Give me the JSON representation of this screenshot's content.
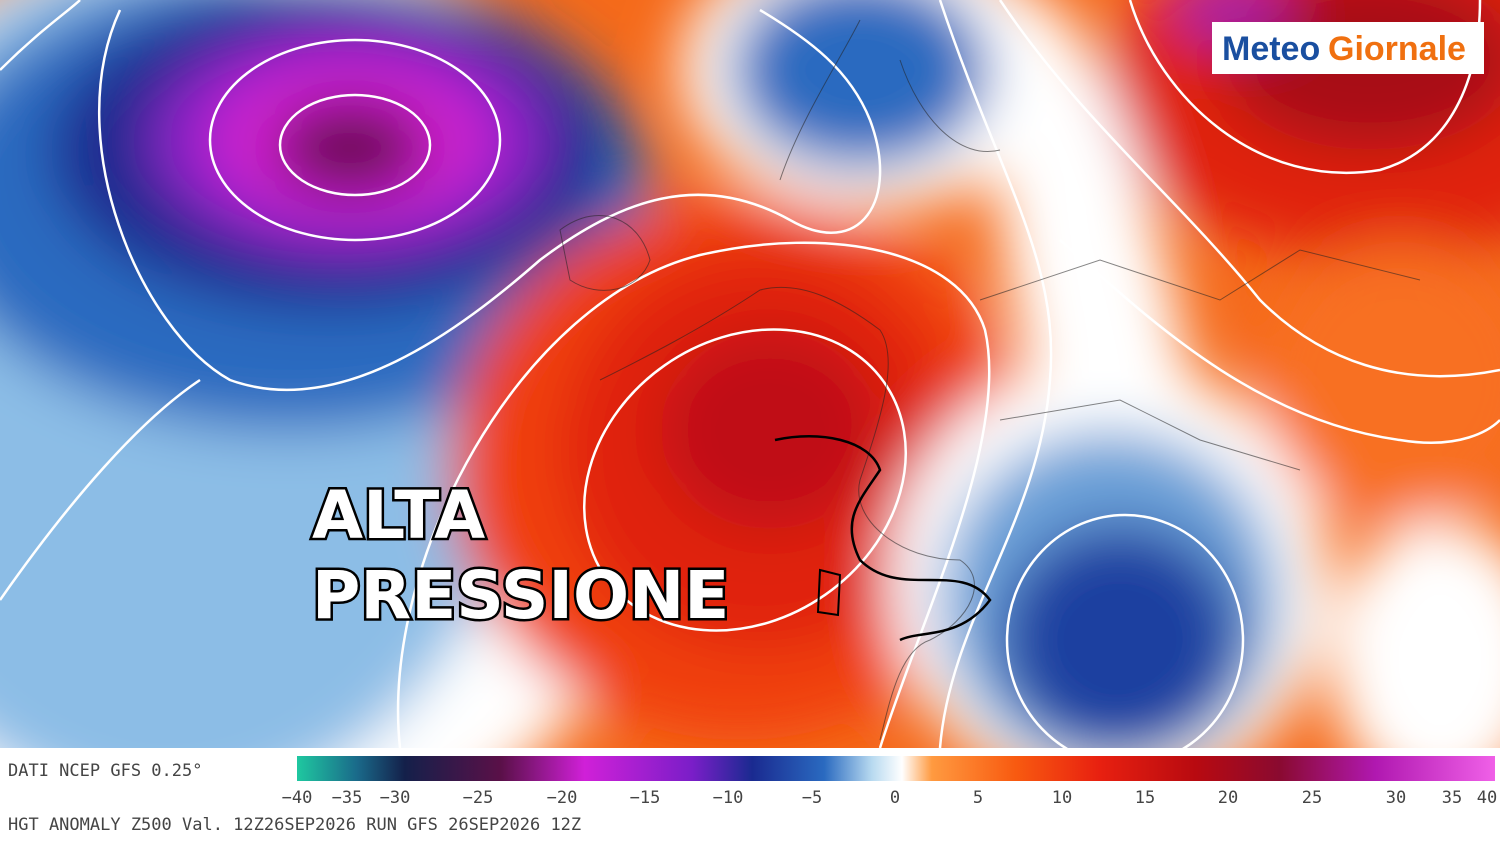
{
  "logo": {
    "part1": "Meteo",
    "part2": "Giornale"
  },
  "headline": {
    "line1": "ALTA",
    "line2": "PRESSIONE"
  },
  "footer": {
    "source": "DATI NCEP GFS 0.25°",
    "description": "HGT ANOMALY Z500 Val. 12Z26SEP2026 RUN GFS 26SEP2026 12Z"
  },
  "colorbar": {
    "labels": [
      "−40",
      "−35",
      "−30",
      "−25",
      "−20",
      "−15",
      "−10",
      "−5",
      "0",
      "5",
      "10",
      "15",
      "20",
      "25",
      "30",
      "35",
      "40"
    ]
  }
}
